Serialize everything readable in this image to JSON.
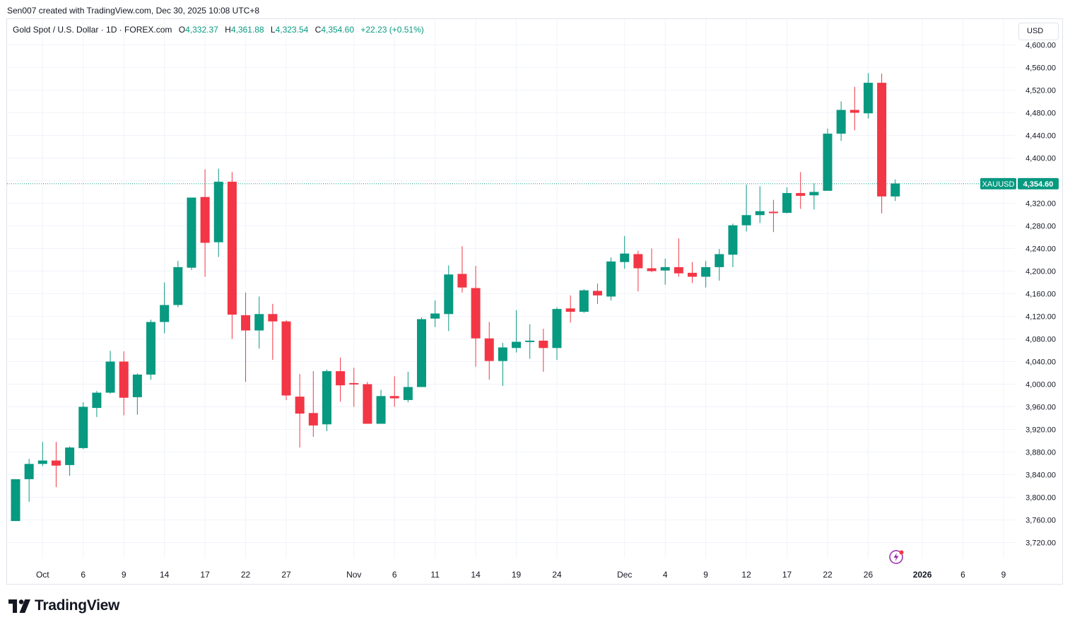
{
  "header": {
    "creator_line": "Sen007 created with TradingView.com, Dec 30, 2025 10:08 UTC+8"
  },
  "legend": {
    "title": "Gold Spot / U.S. Dollar · 1D · FOREX.com",
    "o_label": "O",
    "o_value": "4,332.37",
    "h_label": "H",
    "h_value": "4,361.88",
    "l_label": "L",
    "l_value": "4,323.54",
    "c_label": "C",
    "c_value": "4,354.60",
    "change": "+22.23 (+0.51%)"
  },
  "currency_button": "USD",
  "price_tag": {
    "symbol": "XAUUSD",
    "value": "4,354.60"
  },
  "colors": {
    "up": "#089981",
    "down": "#f23645",
    "grid": "#f0f3fa",
    "text": "#131722"
  },
  "icons": [
    "tradingview-logo-icon",
    "flash-icon"
  ],
  "brand": "TradingView",
  "chart_data": {
    "type": "candlestick",
    "title": "Gold Spot / U.S. Dollar · 1D · FOREX.com",
    "symbol": "XAUUSD",
    "ylim": [
      3680,
      4620
    ],
    "y_ticks": [
      {
        "value": 3720,
        "label": "3,720.00"
      },
      {
        "value": 3760,
        "label": "3,760.00"
      },
      {
        "value": 3800,
        "label": "3,800.00"
      },
      {
        "value": 3840,
        "label": "3,840.00"
      },
      {
        "value": 3880,
        "label": "3,880.00"
      },
      {
        "value": 3920,
        "label": "3,920.00"
      },
      {
        "value": 3960,
        "label": "3,960.00"
      },
      {
        "value": 4000,
        "label": "4,000.00"
      },
      {
        "value": 4040,
        "label": "4,040.00"
      },
      {
        "value": 4080,
        "label": "4,080.00"
      },
      {
        "value": 4120,
        "label": "4,120.00"
      },
      {
        "value": 4160,
        "label": "4,160.00"
      },
      {
        "value": 4200,
        "label": "4,200.00"
      },
      {
        "value": 4240,
        "label": "4,240.00"
      },
      {
        "value": 4280,
        "label": "4,280.00"
      },
      {
        "value": 4320,
        "label": "4,320.00"
      },
      {
        "value": 4360,
        "label": "4,360.00"
      },
      {
        "value": 4400,
        "label": "4,400.00"
      },
      {
        "value": 4440,
        "label": "4,440.00"
      },
      {
        "value": 4480,
        "label": "4,480.00"
      },
      {
        "value": 4520,
        "label": "4,520.00"
      },
      {
        "value": 4560,
        "label": "4,560.00"
      },
      {
        "value": 4600,
        "label": "4,600.00"
      }
    ],
    "x_ticks": [
      {
        "bar": 2,
        "label": "Oct"
      },
      {
        "bar": 5,
        "label": "6"
      },
      {
        "bar": 8,
        "label": "9"
      },
      {
        "bar": 11,
        "label": "14"
      },
      {
        "bar": 14,
        "label": "17"
      },
      {
        "bar": 17,
        "label": "22"
      },
      {
        "bar": 20,
        "label": "27"
      },
      {
        "bar": 25,
        "label": "Nov"
      },
      {
        "bar": 28,
        "label": "6"
      },
      {
        "bar": 31,
        "label": "11"
      },
      {
        "bar": 34,
        "label": "14"
      },
      {
        "bar": 37,
        "label": "19"
      },
      {
        "bar": 40,
        "label": "24"
      },
      {
        "bar": 45,
        "label": "Dec"
      },
      {
        "bar": 48,
        "label": "4"
      },
      {
        "bar": 51,
        "label": "9"
      },
      {
        "bar": 54,
        "label": "12"
      },
      {
        "bar": 57,
        "label": "17"
      },
      {
        "bar": 60,
        "label": "22"
      },
      {
        "bar": 63,
        "label": "26"
      },
      {
        "bar": 67,
        "label": "2026"
      },
      {
        "bar": 70,
        "label": "6"
      },
      {
        "bar": 73,
        "label": "9"
      }
    ],
    "last_price": 4354.6,
    "candles": [
      {
        "o": 3758,
        "h": 3832,
        "l": 3758,
        "c": 3832
      },
      {
        "o": 3832,
        "h": 3868,
        "l": 3792,
        "c": 3859
      },
      {
        "o": 3859,
        "h": 3898,
        "l": 3855,
        "c": 3865
      },
      {
        "o": 3865,
        "h": 3898,
        "l": 3818,
        "c": 3856
      },
      {
        "o": 3857,
        "h": 3890,
        "l": 3838,
        "c": 3888
      },
      {
        "o": 3887,
        "h": 3968,
        "l": 3885,
        "c": 3960
      },
      {
        "o": 3958,
        "h": 3988,
        "l": 3942,
        "c": 3985
      },
      {
        "o": 3985,
        "h": 4059,
        "l": 3983,
        "c": 4040
      },
      {
        "o": 4040,
        "h": 4058,
        "l": 3945,
        "c": 3976
      },
      {
        "o": 3977,
        "h": 4019,
        "l": 3946,
        "c": 4017
      },
      {
        "o": 4017,
        "h": 4114,
        "l": 4008,
        "c": 4110
      },
      {
        "o": 4110,
        "h": 4180,
        "l": 4090,
        "c": 4140
      },
      {
        "o": 4140,
        "h": 4218,
        "l": 4136,
        "c": 4207
      },
      {
        "o": 4206,
        "h": 4330,
        "l": 4202,
        "c": 4330
      },
      {
        "o": 4331,
        "h": 4380,
        "l": 4190,
        "c": 4250
      },
      {
        "o": 4251,
        "h": 4381,
        "l": 4225,
        "c": 4358
      },
      {
        "o": 4358,
        "h": 4375,
        "l": 4080,
        "c": 4123
      },
      {
        "o": 4122,
        "h": 4162,
        "l": 4004,
        "c": 4095
      },
      {
        "o": 4095,
        "h": 4155,
        "l": 4063,
        "c": 4124
      },
      {
        "o": 4124,
        "h": 4142,
        "l": 4043,
        "c": 4111
      },
      {
        "o": 4111,
        "h": 4113,
        "l": 3972,
        "c": 3980
      },
      {
        "o": 3978,
        "h": 4018,
        "l": 3888,
        "c": 3948
      },
      {
        "o": 3949,
        "h": 4023,
        "l": 3907,
        "c": 3927
      },
      {
        "o": 3929,
        "h": 4026,
        "l": 3917,
        "c": 4023
      },
      {
        "o": 4023,
        "h": 4047,
        "l": 3969,
        "c": 3998
      },
      {
        "o": 4002,
        "h": 4029,
        "l": 3960,
        "c": 4000
      },
      {
        "o": 4000,
        "h": 4004,
        "l": 3930,
        "c": 3930
      },
      {
        "o": 3930,
        "h": 3990,
        "l": 3930,
        "c": 3979
      },
      {
        "o": 3979,
        "h": 4014,
        "l": 3960,
        "c": 3975
      },
      {
        "o": 3972,
        "h": 4022,
        "l": 3968,
        "c": 3995
      },
      {
        "o": 3995,
        "h": 4118,
        "l": 3995,
        "c": 4115
      },
      {
        "o": 4116,
        "h": 4148,
        "l": 4101,
        "c": 4125
      },
      {
        "o": 4124,
        "h": 4210,
        "l": 4094,
        "c": 4194
      },
      {
        "o": 4195,
        "h": 4244,
        "l": 4162,
        "c": 4171
      },
      {
        "o": 4170,
        "h": 4209,
        "l": 4031,
        "c": 4081
      },
      {
        "o": 4081,
        "h": 4110,
        "l": 4008,
        "c": 4041
      },
      {
        "o": 4041,
        "h": 4073,
        "l": 3997,
        "c": 4065
      },
      {
        "o": 4064,
        "h": 4131,
        "l": 4056,
        "c": 4075
      },
      {
        "o": 4077,
        "h": 4106,
        "l": 4045,
        "c": 4077
      },
      {
        "o": 4077,
        "h": 4098,
        "l": 4022,
        "c": 4064
      },
      {
        "o": 4064,
        "h": 4136,
        "l": 4043,
        "c": 4133
      },
      {
        "o": 4134,
        "h": 4157,
        "l": 4109,
        "c": 4128
      },
      {
        "o": 4128,
        "h": 4168,
        "l": 4126,
        "c": 4166
      },
      {
        "o": 4165,
        "h": 4178,
        "l": 4142,
        "c": 4157
      },
      {
        "o": 4155,
        "h": 4224,
        "l": 4148,
        "c": 4217
      },
      {
        "o": 4216,
        "h": 4262,
        "l": 4204,
        "c": 4231
      },
      {
        "o": 4230,
        "h": 4236,
        "l": 4164,
        "c": 4205
      },
      {
        "o": 4205,
        "h": 4240,
        "l": 4198,
        "c": 4200
      },
      {
        "o": 4201,
        "h": 4222,
        "l": 4176,
        "c": 4207
      },
      {
        "o": 4207,
        "h": 4258,
        "l": 4190,
        "c": 4196
      },
      {
        "o": 4197,
        "h": 4216,
        "l": 4179,
        "c": 4190
      },
      {
        "o": 4190,
        "h": 4218,
        "l": 4171,
        "c": 4207
      },
      {
        "o": 4207,
        "h": 4239,
        "l": 4183,
        "c": 4230
      },
      {
        "o": 4229,
        "h": 4284,
        "l": 4207,
        "c": 4281
      },
      {
        "o": 4281,
        "h": 4353,
        "l": 4270,
        "c": 4299
      },
      {
        "o": 4299,
        "h": 4350,
        "l": 4285,
        "c": 4306
      },
      {
        "o": 4305,
        "h": 4326,
        "l": 4269,
        "c": 4303
      },
      {
        "o": 4303,
        "h": 4348,
        "l": 4302,
        "c": 4338
      },
      {
        "o": 4338,
        "h": 4375,
        "l": 4310,
        "c": 4333
      },
      {
        "o": 4334,
        "h": 4355,
        "l": 4309,
        "c": 4340
      },
      {
        "o": 4342,
        "h": 4452,
        "l": 4342,
        "c": 4443
      },
      {
        "o": 4443,
        "h": 4500,
        "l": 4430,
        "c": 4485
      },
      {
        "o": 4485,
        "h": 4526,
        "l": 4449,
        "c": 4480
      },
      {
        "o": 4479,
        "h": 4550,
        "l": 4470,
        "c": 4533
      },
      {
        "o": 4533,
        "h": 4549,
        "l": 4302,
        "c": 4332
      },
      {
        "o": 4332,
        "h": 4362,
        "l": 4324,
        "c": 4355
      }
    ]
  }
}
